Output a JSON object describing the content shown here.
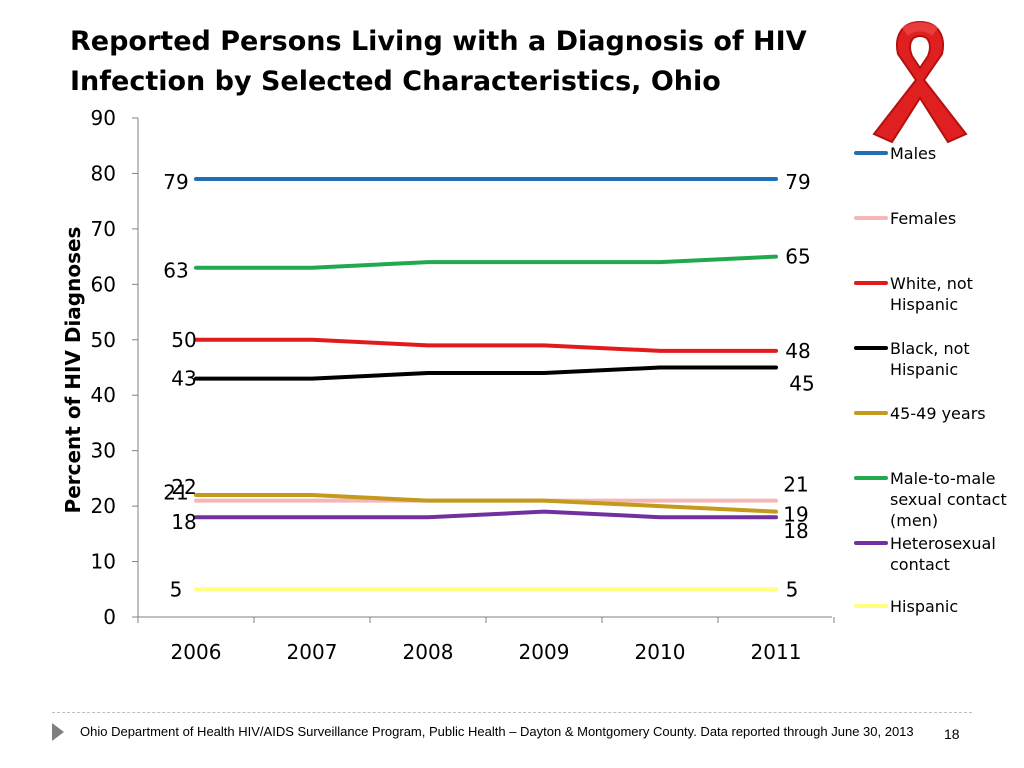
{
  "slide": {
    "title": "Reported Persons Living with a Diagnosis of  HIV Infection by Selected Characteristics, Ohio",
    "footer": "Ohio Department of Health HIV/AIDS Surveillance Program, Public Health – Dayton & Montgomery County.  Data reported through June 30, 2013",
    "page_number": "18",
    "ribbon_icon": "red-awareness-ribbon-icon"
  },
  "chart_data": {
    "type": "line",
    "title": "",
    "xlabel": "",
    "ylabel": "Percent of HIV Diagnoses",
    "ylim": [
      0,
      90
    ],
    "yticks": [
      0,
      10,
      20,
      30,
      40,
      50,
      60,
      70,
      80,
      90
    ],
    "grid": false,
    "legend_position": "right",
    "x": [
      "2006",
      "2007",
      "2008",
      "2009",
      "2010",
      "2011"
    ],
    "series": [
      {
        "name": "Males",
        "color": "#1f6fb4",
        "values": [
          79,
          79,
          79,
          79,
          79,
          79
        ],
        "start_label": "79",
        "end_label": "79"
      },
      {
        "name": "Females",
        "color": "#f4b6b6",
        "values": [
          21,
          21,
          21,
          21,
          21,
          21
        ],
        "start_label": "21",
        "end_label": "21"
      },
      {
        "name": "White, not Hispanic",
        "color": "#e31a1c",
        "values": [
          50,
          50,
          49,
          49,
          48,
          48
        ],
        "start_label": "50",
        "end_label": "48"
      },
      {
        "name": "Black, not Hispanic",
        "color": "#000000",
        "values": [
          43,
          43,
          44,
          44,
          45,
          45
        ],
        "start_label": "43",
        "end_label": "45"
      },
      {
        "name": "45-49 years",
        "color": "#c49a1c",
        "values": [
          22,
          22,
          21,
          21,
          20,
          19
        ],
        "start_label": "22",
        "end_label": "19"
      },
      {
        "name": "Male-to-male sexual contact (men)",
        "color": "#21a94f",
        "values": [
          63,
          63,
          64,
          64,
          64,
          65
        ],
        "start_label": "63",
        "end_label": "65"
      },
      {
        "name": "Heterosexual contact",
        "color": "#7030a0",
        "values": [
          18,
          18,
          18,
          19,
          18,
          18
        ],
        "start_label": "18",
        "end_label": "18"
      },
      {
        "name": "Hispanic",
        "color": "#ffff80",
        "values": [
          5,
          5,
          5,
          5,
          5,
          5
        ],
        "start_label": "5",
        "end_label": "5"
      }
    ]
  }
}
